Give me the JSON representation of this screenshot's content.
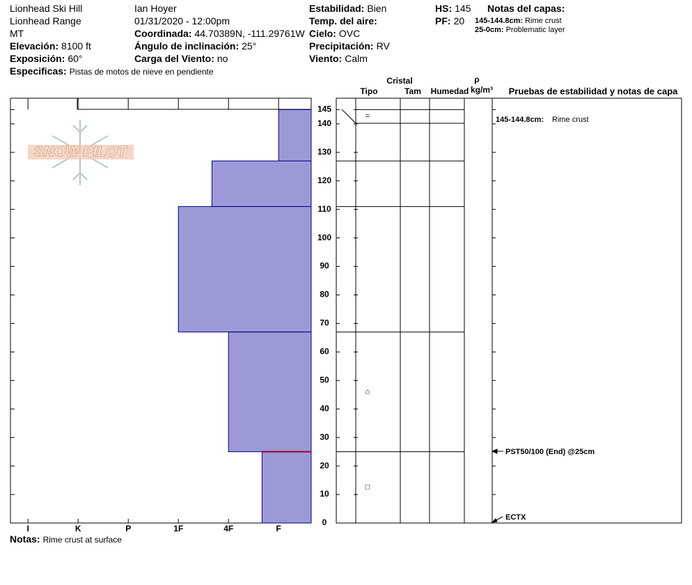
{
  "header": {
    "location": [
      "Lionhead Ski Hill",
      "Lionhead Range",
      "MT"
    ],
    "elevation": {
      "label": "Elevación:",
      "value": "8100 ft"
    },
    "aspect": {
      "label": "Exposición:",
      "value": "60°"
    },
    "specifics": {
      "label": "Especificas:",
      "value": "Pistas de motos de nieve en pendiente"
    },
    "observer": "Ian Hoyer",
    "datetime": "01/31/2020 - 12:00pm",
    "coordinates": {
      "label": "Coordinada:",
      "value": "44.70389N, -111.29761W"
    },
    "slope": {
      "label": "Ángulo de inclinación:",
      "value": "25°"
    },
    "wind_loading": {
      "label": "Carga del Viento:",
      "value": "no"
    },
    "stability": {
      "label": "Estabilidad:",
      "value": "Bien"
    },
    "air_temp": {
      "label": "Temp. del aire:"
    },
    "sky": {
      "label": "Cielo:",
      "value": "OVC"
    },
    "precip": {
      "label": "Precipitación:",
      "value": "RV"
    },
    "wind": {
      "label": "Viento:",
      "value": "Calm"
    },
    "hs": {
      "label": "HS:",
      "value": "145"
    },
    "pf": {
      "label": "PF:",
      "value": "20"
    },
    "layer_notes_title": "Notas del capas:",
    "layer_notes": [
      {
        "range": "145-144.8cm:",
        "text": "Rime crust"
      },
      {
        "range": "25-0cm:",
        "text": "Problematic layer"
      }
    ]
  },
  "chart_data": {
    "type": "hardness-profile",
    "watermark": "SNOW PILOT",
    "xlim": [
      6.35,
      0.35
    ],
    "xticks": [
      {
        "value": 6,
        "label": "I"
      },
      {
        "value": 5,
        "label": "K"
      },
      {
        "value": 4,
        "label": "P"
      },
      {
        "value": 3,
        "label": "1F"
      },
      {
        "value": 2,
        "label": "4F"
      },
      {
        "value": 1,
        "label": "F"
      }
    ],
    "ylim": [
      0,
      149
    ],
    "yticks": [
      0,
      10,
      20,
      30,
      40,
      50,
      60,
      70,
      80,
      90,
      100,
      110,
      120,
      130,
      140,
      145
    ],
    "color": "#9c9ad6",
    "edge_color": "#000080",
    "problem_color": "#a00030",
    "layers": [
      {
        "top": 145,
        "bottom": 127,
        "hardness": 1,
        "grain": "="
      },
      {
        "top": 127,
        "bottom": 111,
        "hardness": 2.33
      },
      {
        "top": 111,
        "bottom": 67,
        "hardness": 3
      },
      {
        "top": 67,
        "bottom": 25,
        "hardness": 2,
        "grain": "⌂"
      },
      {
        "top": 25,
        "bottom": 0,
        "hardness": 1.33,
        "grain": "□"
      }
    ]
  },
  "table": {
    "header_group": "Cristal",
    "columns": [
      "Tipo",
      "Tam",
      "Humedad"
    ],
    "density": "ρ",
    "density_unit": "kg/m³",
    "tests_title": "Pruebas de estabilidad y notas de capa",
    "notes": [
      {
        "range": "145-144.8cm:",
        "text": "Rime crust"
      }
    ],
    "tests": [
      "PST50/100 (End) @25cm",
      "ECTX"
    ]
  },
  "footer": {
    "label": "Notas:",
    "value": "Rime crust at surface"
  }
}
